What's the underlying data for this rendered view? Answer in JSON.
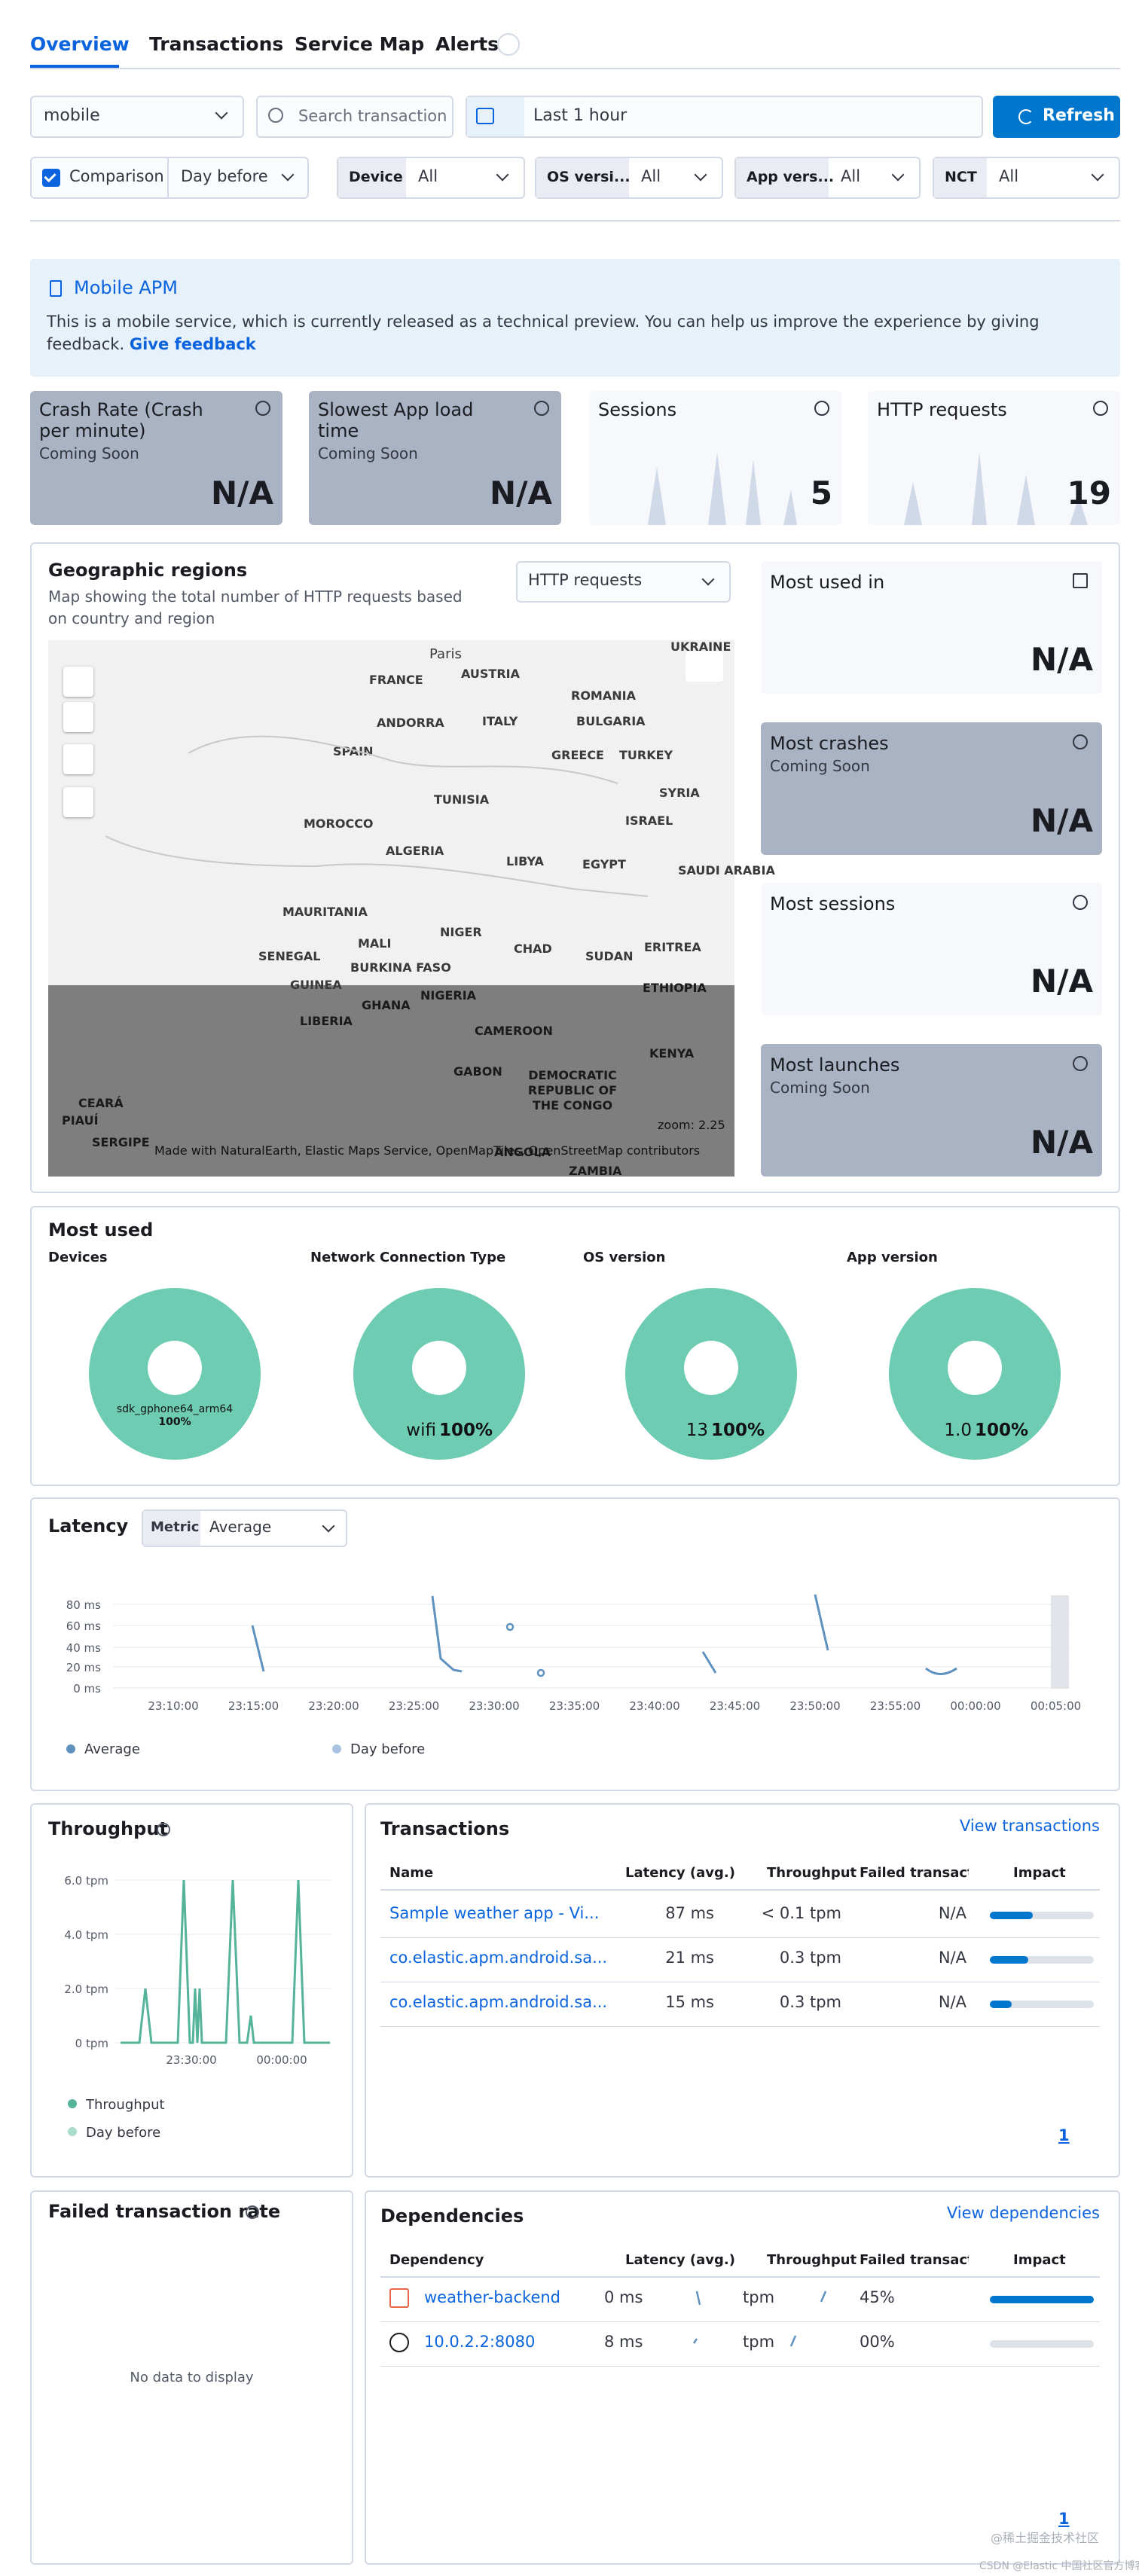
{
  "tabs": [
    "Overview",
    "Transactions",
    "Service Map",
    "Alerts"
  ],
  "filters": {
    "service": "mobile",
    "search_placeholder": "Search transactions",
    "date": "Last 1 hour",
    "refresh": "Refresh",
    "comparison": "Comparison",
    "comparison_value": "Day before",
    "facets": [
      {
        "label": "Device",
        "value": "All"
      },
      {
        "label": "OS versi...",
        "value": "All"
      },
      {
        "label": "App vers...",
        "value": "All"
      },
      {
        "label": "NCT",
        "value": "All"
      }
    ]
  },
  "callout": {
    "title": "Mobile APM",
    "text": "This is a mobile service, which is currently released as a technical preview. You can help us improve the experience by giving feedback.",
    "link": "Give feedback"
  },
  "kpis": [
    {
      "title": "Crash Rate (Crash per minute)",
      "subtitle": "Coming Soon",
      "value": "N/A"
    },
    {
      "title": "Slowest App load time",
      "subtitle": "Coming Soon",
      "value": "N/A"
    },
    {
      "title": "Sessions",
      "value": 5
    },
    {
      "title": "HTTP requests",
      "value": 19
    }
  ],
  "geo": {
    "title": "Geographic regions",
    "description": "Map showing the total number of HTTP requests based on country and region",
    "select": "HTTP requests",
    "zoom": "zoom: 2.25",
    "attribution": "Made with NaturalEarth, Elastic Maps Service, OpenMapTiles, OpenStreetMap contributors",
    "map_labels": [
      "Paris",
      "FRANCE",
      "AUSTRIA",
      "ROMANIA",
      "UKRAINE",
      "ITALY",
      "BULGARIA",
      "ANDORRA",
      "SPAIN",
      "GREECE",
      "TURKEY",
      "SYRIA",
      "TUNISIA",
      "ISRAEL",
      "MOROCCO",
      "ALGERIA",
      "LIBYA",
      "EGYPT",
      "SAUDI ARABIA",
      "MAURITANIA",
      "MALI",
      "NIGER",
      "CHAD",
      "SUDAN",
      "ERITREA",
      "SENEGAL",
      "BURKINA FASO",
      "GUINEA",
      "GHANA",
      "NIGERIA",
      "ETHIOPIA",
      "LIBERIA",
      "CAMEROON",
      "KENYA",
      "GABON",
      "DEMOCRATIC REPUBLIC OF THE CONGO",
      "ANGOLA",
      "ZAMBIA",
      "CEARÁ",
      "PIAUÍ",
      "SERGIPE"
    ],
    "cards": [
      {
        "title": "Most used in",
        "value": "N/A"
      },
      {
        "title": "Most crashes",
        "subtitle": "Coming Soon",
        "value": "N/A"
      },
      {
        "title": "Most sessions",
        "value": "N/A"
      },
      {
        "title": "Most launches",
        "subtitle": "Coming Soon",
        "value": "N/A"
      }
    ]
  },
  "most_used": {
    "title": "Most used",
    "charts": [
      {
        "title": "Devices",
        "label": "sdk_gphone64_arm64",
        "percent": "100%"
      },
      {
        "title": "Network Connection Type",
        "label": "wifi",
        "percent": "100%"
      },
      {
        "title": "OS version",
        "label": "13",
        "percent": "100%"
      },
      {
        "title": "App version",
        "label": "1.0",
        "percent": "100%"
      }
    ]
  },
  "latency": {
    "title": "Latency",
    "metric_label": "Metric",
    "metric": "Average",
    "yticks": [
      "80 ms",
      "60 ms",
      "40 ms",
      "20 ms",
      "0 ms"
    ],
    "xticks": [
      "23:10:00",
      "23:15:00",
      "23:20:00",
      "23:25:00",
      "23:30:00",
      "23:35:00",
      "23:40:00",
      "23:45:00",
      "23:50:00",
      "23:55:00",
      "00:00:00",
      "00:05:00"
    ],
    "legend": [
      "Average",
      "Day before"
    ]
  },
  "throughput": {
    "title": "Throughput",
    "yticks": [
      "6.0 tpm",
      "4.0 tpm",
      "2.0 tpm",
      "0 tpm"
    ],
    "xticks": [
      "23:30:00",
      "00:00:00"
    ],
    "legend": [
      "Throughput",
      "Day before"
    ]
  },
  "transactions": {
    "title": "Transactions",
    "link": "View transactions",
    "columns": [
      "Name",
      "Latency (avg.)",
      "Throughput",
      "Failed transaction",
      "Impact"
    ],
    "rows": [
      {
        "name": "Sample weather app - Vi...",
        "latency": "87 ms",
        "throughput": "< 0.1 tpm",
        "failed": "N/A",
        "impact": 41
      },
      {
        "name": "co.elastic.apm.android.sa...",
        "latency": "21 ms",
        "throughput": "0.3 tpm",
        "failed": "N/A",
        "impact": 37
      },
      {
        "name": "co.elastic.apm.android.sa...",
        "latency": "15 ms",
        "throughput": "0.3 tpm",
        "failed": "N/A",
        "impact": 21
      }
    ],
    "page": "1"
  },
  "failed": {
    "title": "Failed transaction rate",
    "empty": "No data to display"
  },
  "dependencies": {
    "title": "Dependencies",
    "link": "View dependencies",
    "columns": [
      "Dependency",
      "Latency (avg.)",
      "Throughput",
      "Failed transaction",
      "Impact"
    ],
    "rows": [
      {
        "name": "weather-backend",
        "latency": "0 ms",
        "throughput": "tpm",
        "failed": "45%",
        "impact": 100
      },
      {
        "name": "10.0.2.2:8080",
        "latency": "8 ms",
        "throughput": "tpm",
        "failed": "00%",
        "impact": 0
      }
    ],
    "page": "1"
  },
  "watermark": "@稀土掘金技术社区",
  "footer": "CSDN @Elastic 中国社区官方博客"
}
